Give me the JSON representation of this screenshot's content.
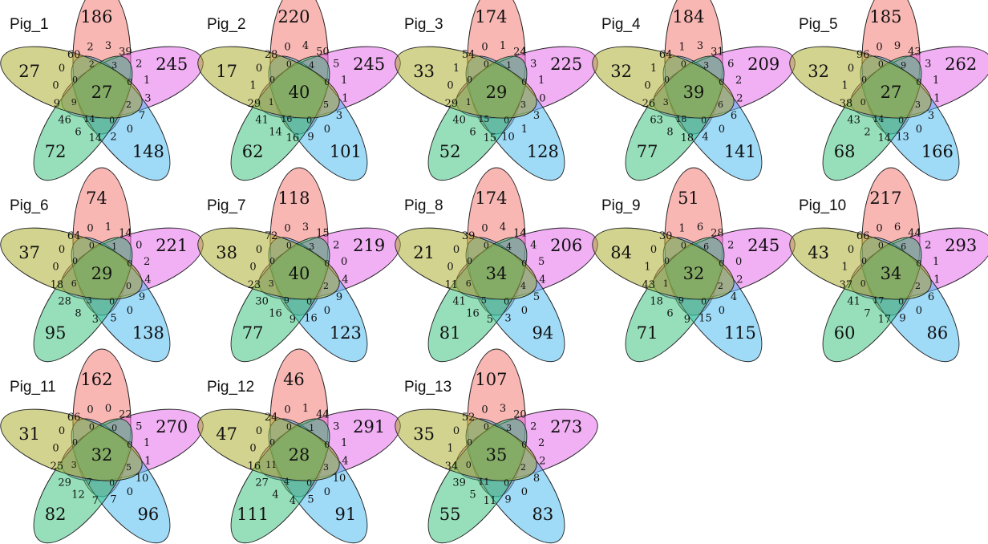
{
  "colors": {
    "set1": "#f36f6a",
    "set2": "#e35fe9",
    "set3": "#3fb6ef",
    "set4": "#2fbf77",
    "set5": "#a8a722"
  },
  "diagrams": [
    {
      "title": "Pig_1",
      "unique": [
        186,
        245,
        148,
        72,
        27
      ],
      "center": 27,
      "r12": [
        3,
        39,
        2,
        1,
        3,
        7,
        0,
        2,
        14,
        6,
        46,
        9,
        0,
        0,
        60,
        2
      ],
      "r3": [
        3,
        0,
        2,
        0,
        14,
        9,
        0,
        2
      ]
    },
    {
      "title": "Pig_2",
      "unique": [
        220,
        245,
        101,
        62,
        17
      ],
      "center": 40,
      "r12": [
        4,
        50,
        5,
        1,
        1,
        3,
        0,
        9,
        16,
        14,
        41,
        29,
        1,
        0,
        28,
        0
      ],
      "r3": [
        4,
        0,
        5,
        0,
        16,
        1,
        0,
        0
      ]
    },
    {
      "title": "Pig_3",
      "unique": [
        174,
        225,
        128,
        52,
        33
      ],
      "center": 29,
      "r12": [
        1,
        24,
        3,
        1,
        0,
        3,
        1,
        10,
        15,
        6,
        40,
        29,
        0,
        1,
        54,
        0
      ],
      "r3": [
        1,
        0,
        3,
        0,
        15,
        1,
        0,
        0
      ]
    },
    {
      "title": "Pig_4",
      "unique": [
        184,
        209,
        141,
        77,
        32
      ],
      "center": 39,
      "r12": [
        3,
        31,
        6,
        2,
        2,
        6,
        0,
        4,
        18,
        8,
        63,
        26,
        0,
        1,
        64,
        1
      ],
      "r3": [
        3,
        0,
        6,
        0,
        18,
        3,
        0,
        0
      ]
    },
    {
      "title": "Pig_5",
      "unique": [
        185,
        262,
        166,
        68,
        32
      ],
      "center": 27,
      "r12": [
        9,
        43,
        3,
        1,
        1,
        3,
        0,
        13,
        14,
        2,
        43,
        38,
        1,
        0,
        96,
        0
      ],
      "r3": [
        9,
        0,
        3,
        0,
        14,
        0,
        0,
        0
      ]
    },
    {
      "title": "Pig_6",
      "unique": [
        74,
        221,
        138,
        95,
        37
      ],
      "center": 29,
      "r12": [
        1,
        14,
        0,
        2,
        4,
        9,
        0,
        5,
        3,
        8,
        28,
        18,
        0,
        0,
        64,
        0
      ],
      "r3": [
        1,
        0,
        0,
        0,
        3,
        6,
        0,
        0
      ]
    },
    {
      "title": "Pig_7",
      "unique": [
        118,
        219,
        123,
        77,
        38
      ],
      "center": 40,
      "r12": [
        3,
        15,
        2,
        0,
        4,
        9,
        0,
        16,
        9,
        16,
        30,
        23,
        0,
        0,
        72,
        0
      ],
      "r3": [
        3,
        0,
        2,
        0,
        9,
        3,
        0,
        0
      ]
    },
    {
      "title": "Pig_8",
      "unique": [
        174,
        206,
        94,
        81,
        21
      ],
      "center": 34,
      "r12": [
        4,
        14,
        4,
        5,
        4,
        5,
        0,
        3,
        5,
        16,
        41,
        11,
        0,
        0,
        39,
        0
      ],
      "r3": [
        4,
        0,
        4,
        0,
        5,
        6,
        0,
        0
      ]
    },
    {
      "title": "Pig_9",
      "unique": [
        51,
        245,
        115,
        71,
        84
      ],
      "center": 32,
      "r12": [
        6,
        28,
        2,
        0,
        2,
        4,
        0,
        15,
        9,
        6,
        18,
        43,
        1,
        0,
        30,
        1
      ],
      "r3": [
        6,
        0,
        2,
        0,
        9,
        1,
        0,
        0
      ]
    },
    {
      "title": "Pig_10",
      "unique": [
        217,
        293,
        86,
        60,
        43
      ],
      "center": 34,
      "r12": [
        6,
        44,
        2,
        1,
        1,
        6,
        0,
        9,
        17,
        7,
        41,
        37,
        1,
        0,
        66,
        0
      ],
      "r3": [
        6,
        0,
        2,
        0,
        17,
        0,
        0,
        0
      ]
    },
    {
      "title": "Pig_11",
      "unique": [
        162,
        270,
        96,
        82,
        31
      ],
      "center": 32,
      "r12": [
        0,
        22,
        5,
        1,
        1,
        10,
        0,
        7,
        7,
        12,
        29,
        25,
        0,
        0,
        66,
        0
      ],
      "r3": [
        0,
        0,
        5,
        0,
        7,
        3,
        0,
        0
      ]
    },
    {
      "title": "Pig_12",
      "unique": [
        46,
        291,
        91,
        111,
        47
      ],
      "center": 28,
      "r12": [
        1,
        44,
        3,
        1,
        4,
        10,
        0,
        5,
        4,
        4,
        27,
        16,
        0,
        0,
        24,
        0
      ],
      "r3": [
        1,
        0,
        3,
        0,
        4,
        11,
        0,
        0
      ]
    },
    {
      "title": "Pig_13",
      "unique": [
        107,
        273,
        83,
        55,
        35
      ],
      "center": 35,
      "r12": [
        3,
        20,
        2,
        2,
        2,
        8,
        0,
        9,
        11,
        5,
        39,
        34,
        1,
        0,
        52,
        0
      ],
      "r3": [
        3,
        0,
        2,
        0,
        11,
        0,
        0,
        0
      ]
    }
  ]
}
